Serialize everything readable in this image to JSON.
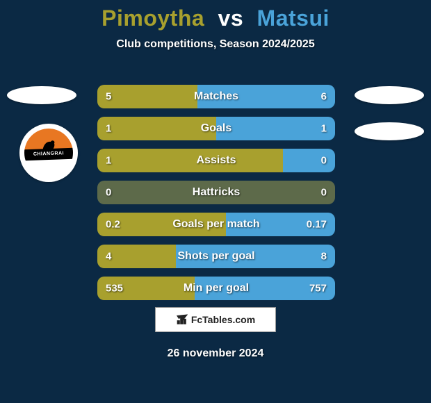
{
  "background_color": "#0b2944",
  "title": {
    "player1": "Pimoytha",
    "vs": "vs",
    "player2": "Matsui",
    "player1_color": "#a8a02e",
    "vs_color": "#ffffff",
    "player2_color": "#4aa3d9"
  },
  "subtitle": "Club competitions, Season 2024/2025",
  "player1_bar_color": "#a8a02e",
  "player2_bar_color": "#4aa3d9",
  "neutral_bar_color": "#5d6a4a",
  "club_badge": {
    "band_text": "CHIANGRAI",
    "top_color": "#e87722",
    "figure_color": "#000000"
  },
  "stats": [
    {
      "label": "Matches",
      "val1": "5",
      "val2": "6",
      "left_pct": 42,
      "right_pct": 58
    },
    {
      "label": "Goals",
      "val1": "1",
      "val2": "1",
      "left_pct": 50,
      "right_pct": 50
    },
    {
      "label": "Assists",
      "val1": "1",
      "val2": "0",
      "left_pct": 78,
      "right_pct": 22
    },
    {
      "label": "Hattricks",
      "val1": "0",
      "val2": "0",
      "left_pct": 50,
      "right_pct": 50,
      "neutral": true
    },
    {
      "label": "Goals per match",
      "val1": "0.2",
      "val2": "0.17",
      "left_pct": 54,
      "right_pct": 46
    },
    {
      "label": "Shots per goal",
      "val1": "4",
      "val2": "8",
      "left_pct": 33,
      "right_pct": 67
    },
    {
      "label": "Min per goal",
      "val1": "535",
      "val2": "757",
      "left_pct": 41,
      "right_pct": 59
    }
  ],
  "watermark": "FcTables.com",
  "date": "26 november 2024"
}
